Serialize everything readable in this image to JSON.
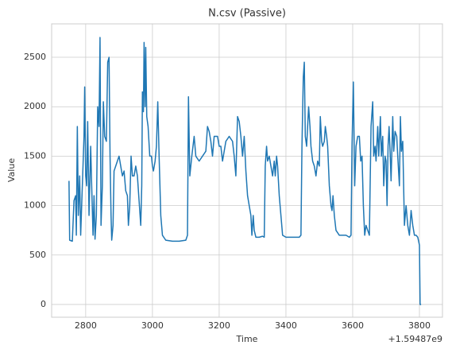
{
  "chart_data": {
    "type": "line",
    "title": "N.csv (Passive)",
    "x_label": "Time",
    "y_label": "Value",
    "x_offset_label": "+1.59487e9",
    "color": "#1f77b4",
    "grid": true,
    "xlim": [
      2698,
      3869
    ],
    "ylim": [
      -129,
      2838
    ],
    "xticks": [
      2800,
      3000,
      3200,
      3400,
      3600,
      3800
    ],
    "yticks": [
      0,
      500,
      1000,
      1500,
      2000,
      2500
    ],
    "x": [
      2750,
      2752,
      2760,
      2765,
      2770,
      2772,
      2775,
      2778,
      2782,
      2785,
      2790,
      2795,
      2797,
      2800,
      2803,
      2806,
      2810,
      2815,
      2818,
      2822,
      2825,
      2828,
      2832,
      2836,
      2840,
      2843,
      2846,
      2850,
      2853,
      2857,
      2862,
      2866,
      2870,
      2873,
      2876,
      2878,
      2882,
      2885,
      2890,
      2895,
      2900,
      2905,
      2910,
      2915,
      2920,
      2925,
      2928,
      2932,
      2936,
      2940,
      2945,
      2950,
      2955,
      2960,
      2965,
      2968,
      2970,
      2973,
      2975,
      2978,
      2980,
      2983,
      2987,
      2992,
      2997,
      3000,
      3003,
      3008,
      3012,
      3016,
      3020,
      3025,
      3030,
      3040,
      3060,
      3080,
      3100,
      3105,
      3108,
      3112,
      3118,
      3125,
      3130,
      3140,
      3150,
      3160,
      3165,
      3170,
      3175,
      3180,
      3185,
      3195,
      3200,
      3205,
      3210,
      3220,
      3230,
      3240,
      3245,
      3250,
      3255,
      3260,
      3265,
      3270,
      3275,
      3280,
      3285,
      3290,
      3295,
      3298,
      3302,
      3305,
      3310,
      3320,
      3330,
      3335,
      3338,
      3342,
      3345,
      3350,
      3355,
      3360,
      3365,
      3368,
      3372,
      3375,
      3380,
      3385,
      3390,
      3400,
      3420,
      3440,
      3445,
      3448,
      3452,
      3455,
      3458,
      3462,
      3468,
      3472,
      3475,
      3480,
      3485,
      3490,
      3495,
      3500,
      3503,
      3507,
      3510,
      3515,
      3518,
      3522,
      3525,
      3530,
      3535,
      3538,
      3541,
      3545,
      3550,
      3560,
      3570,
      3580,
      3590,
      3595,
      3598,
      3602,
      3606,
      3610,
      3615,
      3620,
      3624,
      3628,
      3632,
      3636,
      3640,
      3645,
      3650,
      3655,
      3660,
      3663,
      3667,
      3670,
      3675,
      3678,
      3683,
      3686,
      3690,
      3693,
      3697,
      3700,
      3703,
      3706,
      3709,
      3712,
      3715,
      3720,
      3723,
      3727,
      3732,
      3735,
      3740,
      3743,
      3746,
      3750,
      3755,
      3760,
      3765,
      3770,
      3775,
      3780,
      3785,
      3790,
      3795,
      3800,
      3802,
      3805
    ],
    "values": [
      1250,
      650,
      640,
      1050,
      1100,
      700,
      1800,
      900,
      1300,
      700,
      1200,
      1700,
      2200,
      1300,
      1200,
      1850,
      900,
      1600,
      1200,
      700,
      1100,
      660,
      900,
      2000,
      1800,
      2700,
      800,
      1200,
      2050,
      1700,
      1650,
      2450,
      2500,
      1500,
      900,
      650,
      800,
      1350,
      1400,
      1450,
      1500,
      1400,
      1300,
      1350,
      1150,
      1100,
      800,
      1000,
      1500,
      1300,
      1300,
      1400,
      1300,
      1050,
      800,
      1200,
      2150,
      1950,
      2650,
      2000,
      2600,
      1900,
      1800,
      1500,
      1500,
      1400,
      1350,
      1450,
      1600,
      2050,
      1500,
      900,
      700,
      650,
      640,
      640,
      650,
      700,
      2100,
      1300,
      1500,
      1700,
      1500,
      1450,
      1500,
      1550,
      1800,
      1750,
      1650,
      1500,
      1700,
      1700,
      1600,
      1600,
      1450,
      1650,
      1700,
      1650,
      1500,
      1300,
      1900,
      1850,
      1700,
      1500,
      1700,
      1350,
      1100,
      1000,
      900,
      700,
      900,
      750,
      680,
      680,
      690,
      680,
      1400,
      1600,
      1450,
      1500,
      1400,
      1300,
      1450,
      1300,
      1500,
      1400,
      1100,
      900,
      700,
      680,
      680,
      680,
      700,
      1600,
      2300,
      2450,
      1700,
      1600,
      2000,
      1800,
      1600,
      1450,
      1400,
      1300,
      1450,
      1400,
      1900,
      1650,
      1600,
      1650,
      1800,
      1700,
      1600,
      1200,
      1000,
      950,
      1100,
      900,
      750,
      700,
      700,
      700,
      680,
      700,
      1600,
      2250,
      1200,
      1600,
      1700,
      1700,
      1450,
      1500,
      1000,
      700,
      800,
      750,
      700,
      1800,
      2050,
      1500,
      1600,
      1450,
      1800,
      1500,
      1900,
      1500,
      1700,
      1200,
      1500,
      1450,
      1000,
      1600,
      1800,
      1550,
      1250,
      1900,
      1550,
      1750,
      1700,
      1500,
      1200,
      1900,
      1550,
      1650,
      800,
      1000,
      800,
      700,
      950,
      800,
      700,
      700,
      680,
      600,
      0,
      0
    ]
  }
}
